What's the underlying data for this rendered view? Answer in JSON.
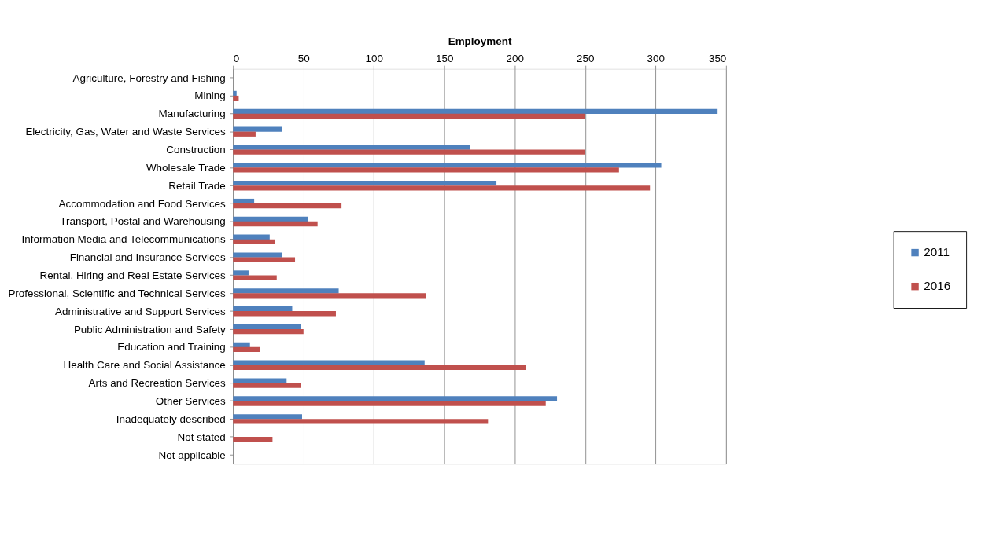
{
  "chart_data": {
    "type": "bar",
    "orientation": "horizontal",
    "xlabel": "Employment",
    "categories": [
      "Agriculture, Forestry and Fishing",
      "Mining",
      "Manufacturing",
      "Electricity, Gas, Water and Waste Services",
      "Construction",
      "Wholesale Trade",
      "Retail Trade",
      "Accommodation and Food Services",
      "Transport, Postal and Warehousing",
      "Information Media and Telecommunications",
      "Financial and Insurance Services",
      "Rental, Hiring and Real Estate Services",
      "Professional, Scientific and Technical Services",
      "Administrative and Support Services",
      "Public Administration and Safety",
      "Education and Training",
      "Health Care and Social Assistance",
      "Arts and Recreation Services",
      "Other Services",
      "Inadequately described",
      "Not stated",
      "Not applicable"
    ],
    "series": [
      {
        "name": "2011",
        "color": "#4f81bd",
        "values": [
          0,
          2.5,
          344,
          35,
          168,
          304,
          187,
          15,
          53,
          26,
          35,
          11,
          75,
          42,
          48,
          12,
          136,
          38,
          230,
          49,
          0,
          0
        ]
      },
      {
        "name": "2016",
        "color": "#c0504d",
        "values": [
          0,
          4,
          250,
          16,
          250,
          274,
          296,
          77,
          60,
          30,
          44,
          31,
          137,
          73,
          50,
          19,
          208,
          48,
          222,
          181,
          28,
          0
        ]
      }
    ],
    "xlim": [
      0,
      350
    ],
    "xticks": [
      0,
      50,
      100,
      150,
      200,
      250,
      300,
      350
    ],
    "grid": "x",
    "legend": "right"
  }
}
